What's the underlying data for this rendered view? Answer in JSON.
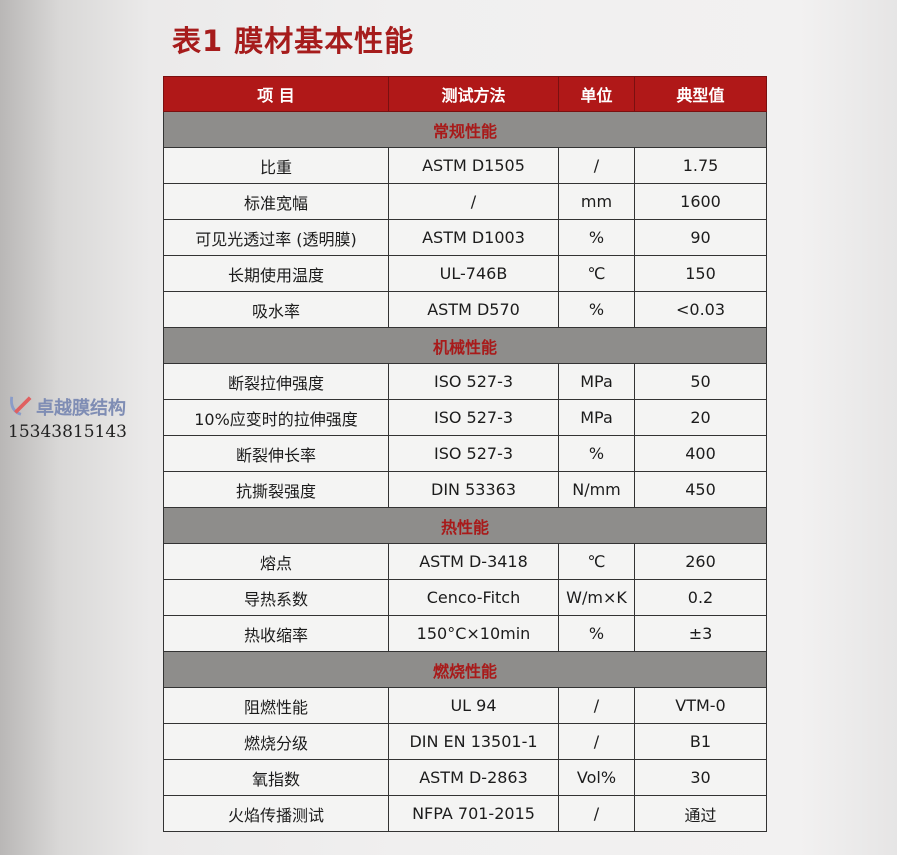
{
  "title": "表1 膜材基本性能",
  "headers": [
    "项  目",
    "测试方法",
    "单位",
    "典型值"
  ],
  "sections": [
    {
      "name": "常规性能",
      "rows": [
        [
          "比重",
          "ASTM D1505",
          "/",
          "1.75"
        ],
        [
          "标准宽幅",
          "/",
          "mm",
          "1600"
        ],
        [
          "可见光透过率 (透明膜)",
          "ASTM D1003",
          "%",
          "90"
        ],
        [
          "长期使用温度",
          "UL-746B",
          "℃",
          "150"
        ],
        [
          "吸水率",
          "ASTM D570",
          "%",
          "<0.03"
        ]
      ]
    },
    {
      "name": "机械性能",
      "rows": [
        [
          "断裂拉伸强度",
          "ISO 527-3",
          "MPa",
          "50"
        ],
        [
          "10%应变时的拉伸强度",
          "ISO 527-3",
          "MPa",
          "20"
        ],
        [
          "断裂伸长率",
          "ISO 527-3",
          "%",
          "400"
        ],
        [
          "抗撕裂强度",
          "DIN 53363",
          "N/mm",
          "450"
        ]
      ]
    },
    {
      "name": "热性能",
      "rows": [
        [
          "熔点",
          "ASTM D-3418",
          "℃",
          "260"
        ],
        [
          "导热系数",
          "Cenco-Fitch",
          "W/m×K",
          "0.2"
        ],
        [
          "热收缩率",
          "150°C×10min",
          "%",
          "±3"
        ]
      ]
    },
    {
      "name": "燃烧性能",
      "rows": [
        [
          "阻燃性能",
          "UL 94",
          "/",
          "VTM-0"
        ],
        [
          "燃烧分级",
          "DIN EN 13501-1",
          "/",
          "B1"
        ],
        [
          "氧指数",
          "ASTM D-2863",
          "Vol%",
          "30"
        ],
        [
          "火焰传播测试",
          "NFPA 701-2015",
          "/",
          "通过"
        ]
      ]
    }
  ],
  "watermark": {
    "name": "卓越膜结构",
    "phone": "15343815143"
  },
  "colors": {
    "title": "#a61c1c",
    "header_bg": "#b01818",
    "section_bg": "#8e8d8b",
    "section_text": "#a81a1a"
  }
}
